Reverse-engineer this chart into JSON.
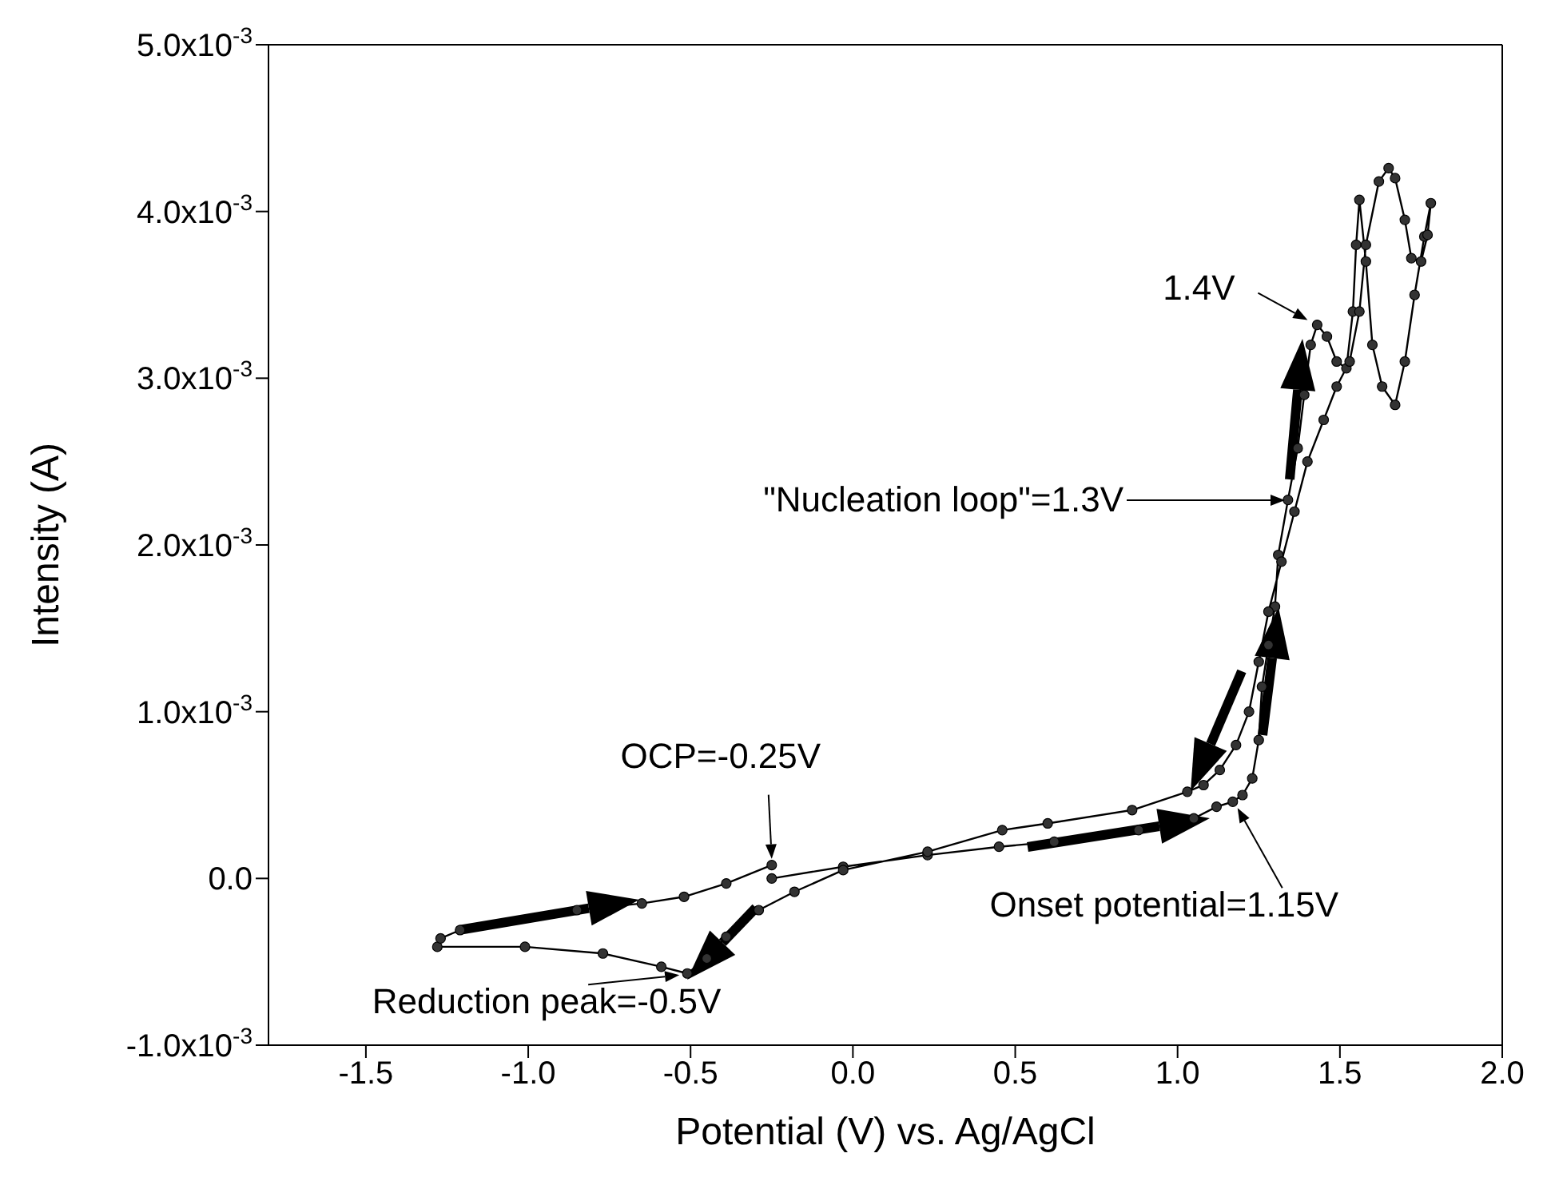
{
  "chart_data": {
    "type": "line",
    "xlabel": "Potential (V) vs. Ag/AgCl",
    "ylabel": "Intensity (A)",
    "xlim": [
      -1.8,
      2.0
    ],
    "xticks": [
      -1.5,
      {
        "value": -1,
        "label": "-1.0"
      },
      -0.5,
      {
        "value": 0,
        "label": "0.0"
      },
      0.5,
      {
        "value": 1,
        "label": "1.0"
      },
      1.5,
      {
        "value": 2,
        "label": "2.0"
      }
    ],
    "ylim": [
      -0.001,
      0.005
    ],
    "yticks": [
      {
        "value": -0.001,
        "label": "-1.0x10$^{-3}$"
      },
      {
        "value": 0,
        "label": "0.0"
      },
      {
        "value": 0.001,
        "label": "1.0x10$^{-3}$"
      },
      {
        "value": 0.002,
        "label": "2.0x10$^{-3}$"
      },
      {
        "value": 0.003,
        "label": "3.0x10$^{-3}$"
      },
      {
        "value": 0.004,
        "label": "4.0x10$^{-3}$"
      },
      {
        "value": 0.005,
        "label": "5.0x10$^{-3}$"
      }
    ],
    "marker": "circle",
    "line_style": "solid",
    "series": [
      {
        "color": "#333333",
        "x": [
          -0.25,
          -0.03,
          0.23,
          0.45,
          0.62,
          0.88,
          1.05,
          1.12,
          1.17,
          1.2,
          1.23,
          1.25,
          1.26,
          1.28,
          1.3,
          1.31,
          1.34,
          1.37,
          1.39,
          1.41,
          1.43,
          1.46,
          1.49,
          1.52,
          1.54,
          1.55,
          1.56,
          1.58,
          1.6,
          1.63,
          1.67,
          1.7,
          1.73,
          1.76,
          1.78,
          1.77,
          1.75,
          1.72,
          1.7,
          1.67,
          1.65,
          1.62,
          1.58,
          1.56,
          1.53,
          1.49,
          1.45,
          1.4,
          1.36,
          1.32,
          1.28,
          1.25,
          1.22,
          1.18,
          1.13,
          1.08,
          1.03,
          0.86,
          0.6,
          0.46,
          0.23,
          -0.03,
          -0.18,
          -0.29,
          -0.39,
          -0.45,
          -0.51,
          -0.59,
          -0.77,
          -1.01,
          -1.28,
          -1.27,
          -1.21,
          -0.85,
          -0.65,
          -0.52,
          -0.39,
          -0.25
        ],
        "values": [
          0,
          7e-05,
          0.00014,
          0.00019,
          0.00022,
          0.00029,
          0.00036,
          0.00043,
          0.00046,
          0.0005,
          0.0006,
          0.00083,
          0.00115,
          0.0014,
          0.00163,
          0.00194,
          0.00227,
          0.00258,
          0.0029,
          0.0032,
          0.00332,
          0.00325,
          0.0031,
          0.00306,
          0.0034,
          0.0038,
          0.00407,
          0.0037,
          0.0032,
          0.00295,
          0.00284,
          0.0031,
          0.0035,
          0.00385,
          0.00405,
          0.00386,
          0.0037,
          0.00372,
          0.00395,
          0.0042,
          0.00426,
          0.00418,
          0.0038,
          0.0034,
          0.0031,
          0.00295,
          0.00275,
          0.0025,
          0.0022,
          0.0019,
          0.0016,
          0.0013,
          0.001,
          0.0008,
          0.00065,
          0.00056,
          0.00052,
          0.00041,
          0.00033,
          0.00029,
          0.00016,
          5e-05,
          -8e-05,
          -0.00019,
          -0.00035,
          -0.00048,
          -0.00057,
          -0.00053,
          -0.00045,
          -0.00041,
          -0.00041,
          -0.00036,
          -0.00031,
          -0.00019,
          -0.00015,
          -0.00011,
          -3e-05,
          8e-05
        ]
      }
    ],
    "annotations": [
      {
        "text": "OCP=-0.25V",
        "x": -0.25,
        "y": 8e-05
      },
      {
        "text": "Reduction peak=-0.5V",
        "x": -0.51,
        "y": -0.00057
      },
      {
        "text": "Onset potential=1.15V",
        "x": 1.17,
        "y": 0.00046
      },
      "\"Nucleation loop\"=1.3V",
      {
        "text": "1.4V",
        "x": 1.43,
        "y": 0.00332
      }
    ]
  }
}
